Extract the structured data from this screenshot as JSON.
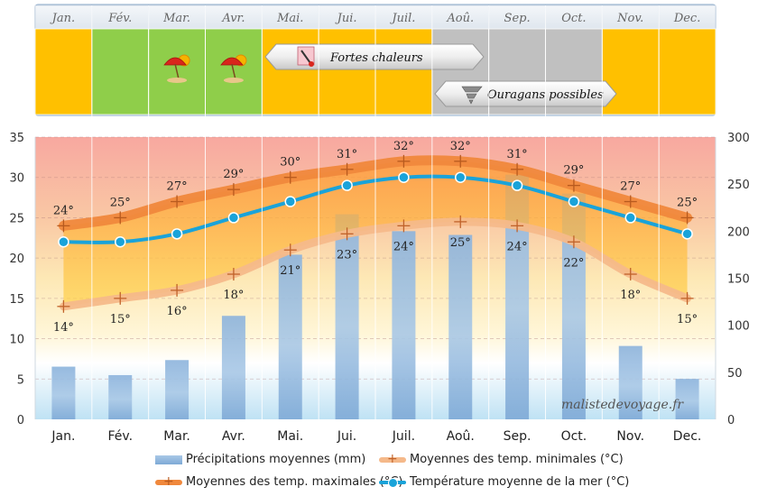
{
  "chart_data": {
    "type": "bar",
    "categories": [
      "Jan.",
      "Fév.",
      "Mar.",
      "Avr.",
      "Mai.",
      "Jui.",
      "Juil.",
      "Aoû.",
      "Sep.",
      "Oct.",
      "Nov.",
      "Dec."
    ],
    "header_months": [
      "Jan.",
      "Fév.",
      "Mar.",
      "Avr.",
      "Mai.",
      "Jui.",
      "Juil.",
      "Aoû.",
      "Sep.",
      "Oct.",
      "Nov.",
      "Dec."
    ],
    "season_colors": [
      "#ffc000",
      "#8fce4a",
      "#8fce4a",
      "#8fce4a",
      "#ffc000",
      "#ffc000",
      "#ffc000",
      "#c0c0c0",
      "#c0c0c0",
      "#c0c0c0",
      "#ffc000",
      "#ffc000"
    ],
    "sun_umbrella_months": [
      "Mar.",
      "Avr."
    ],
    "callouts": [
      {
        "label": "Fortes chaleurs",
        "icon": "thermometer-icon",
        "from": "Mai.",
        "to": "Aoû."
      },
      {
        "label": "Ouragans possibles",
        "icon": "tornado-icon",
        "from": "Aoû.",
        "to": "Oct."
      }
    ],
    "ylim_left": [
      0,
      35
    ],
    "yticks_left": [
      0,
      5,
      10,
      15,
      20,
      25,
      30,
      35
    ],
    "ylim_right": [
      0,
      300
    ],
    "yticks_right": [
      0,
      50,
      100,
      150,
      200,
      250,
      300
    ],
    "series": [
      {
        "name": "Précipitations moyennes (mm)",
        "type": "bar",
        "axis": "right",
        "color": "#8fb4dd",
        "values": [
          56,
          47,
          63,
          110,
          175,
          218,
          200,
          196,
          260,
          240,
          78,
          43
        ]
      },
      {
        "name": "Moyennes des temp. minimales (°C)",
        "type": "line",
        "axis": "left",
        "color": "#f5b98a",
        "values": [
          14,
          15,
          16,
          18,
          21,
          23,
          24,
          24.5,
          24,
          22,
          18,
          15
        ],
        "labels": [
          "14°",
          "15°",
          "16°",
          "18°",
          "21°",
          "23°",
          "24°",
          "25°",
          "24°",
          "22°",
          "18°",
          "15°"
        ]
      },
      {
        "name": "Moyennes des temp. maximales (°C)",
        "type": "line",
        "axis": "left",
        "color": "#f0883c",
        "values": [
          24,
          25,
          27,
          28.5,
          30,
          31,
          32,
          32,
          31,
          29,
          27,
          25
        ],
        "labels": [
          "24°",
          "25°",
          "27°",
          "29°",
          "30°",
          "31°",
          "32°",
          "32°",
          "31°",
          "29°",
          "27°",
          "25°"
        ]
      },
      {
        "name": "Température moyenne de la mer (°C)",
        "type": "line",
        "axis": "left",
        "color": "#1aa3d9",
        "values": [
          22,
          22,
          23,
          25,
          27,
          29,
          30,
          30,
          29,
          27,
          25,
          23
        ]
      }
    ],
    "legend_position": "bottom",
    "grid": true
  },
  "watermark": "malistedevoyage.fr"
}
